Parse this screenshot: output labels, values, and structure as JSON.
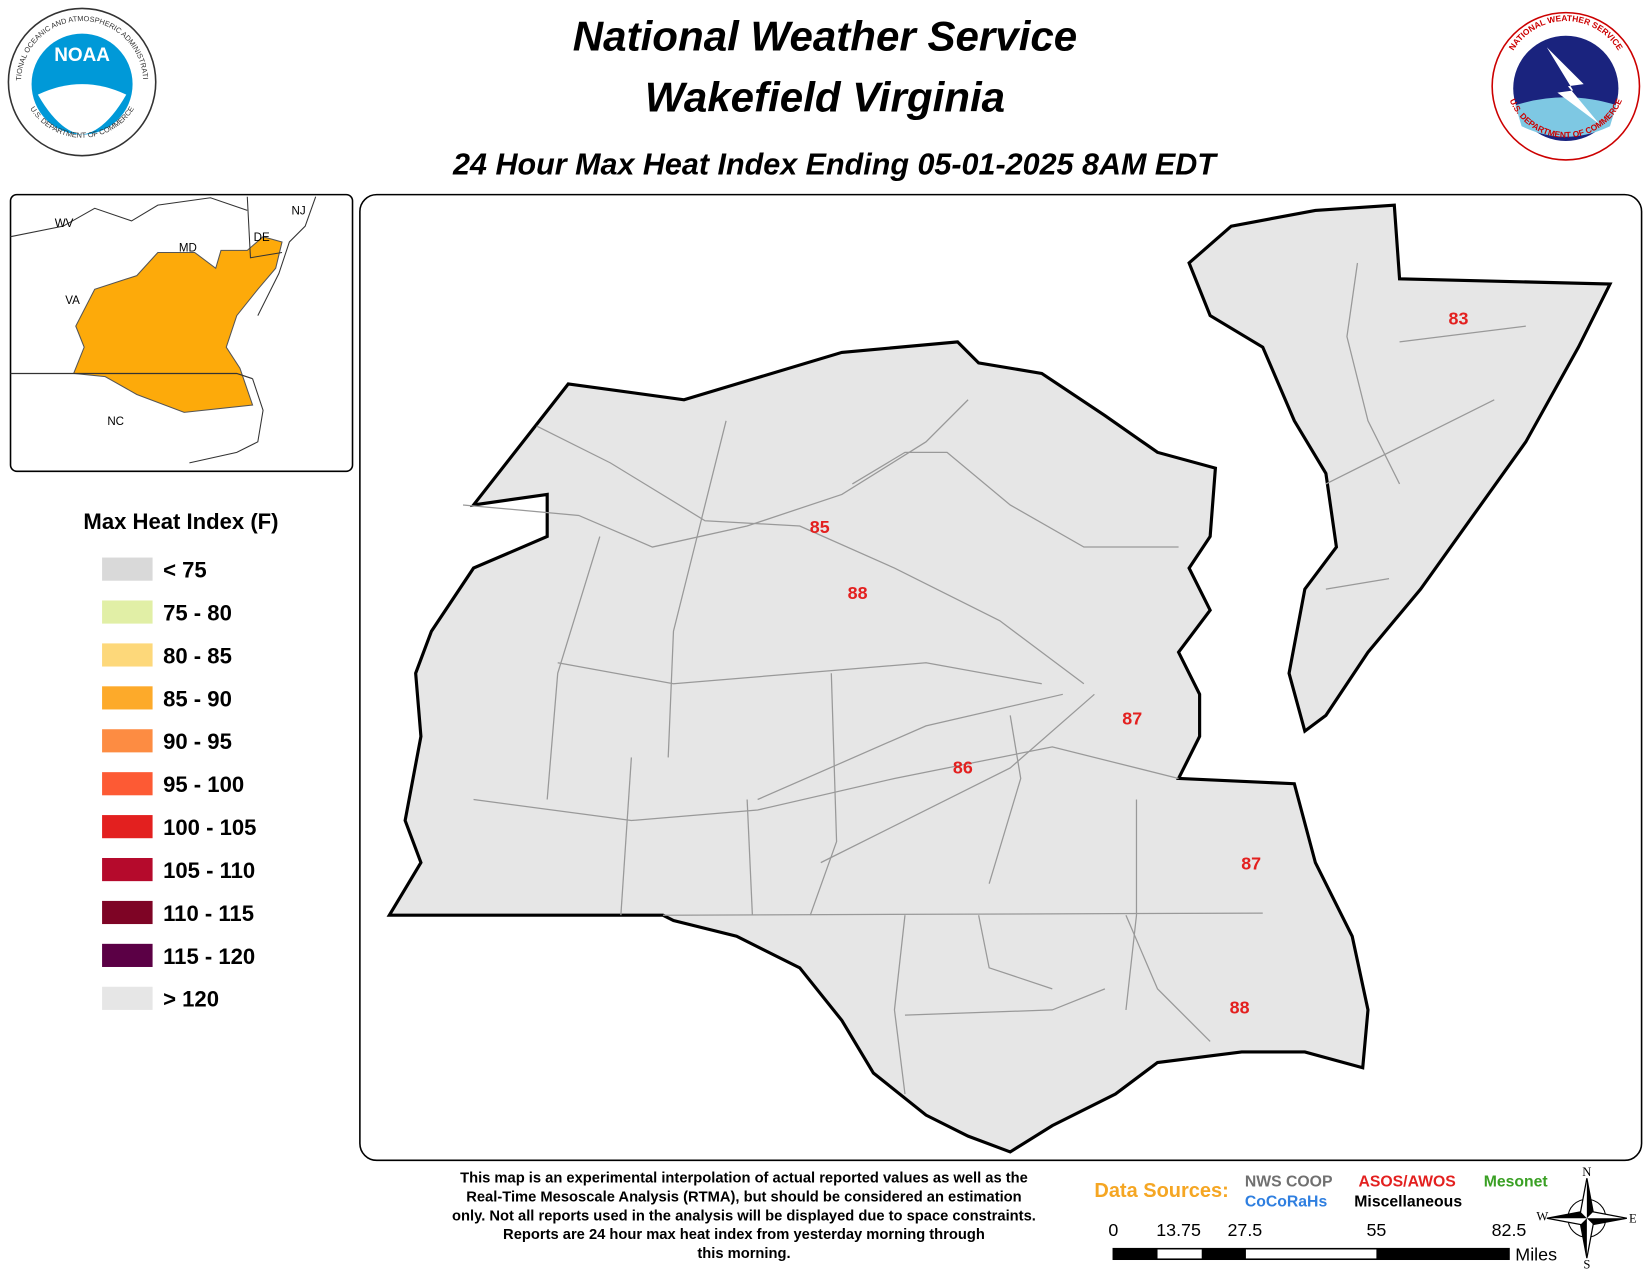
{
  "header": {
    "title_lines": [
      "National Weather Service",
      "Wakefield Virginia"
    ],
    "subtitle": "24 Hour Max Heat Index Ending 05-01-2025 8AM EDT"
  },
  "logos": {
    "left": {
      "text": "NOAA",
      "ring_top": "NATIONAL OCEANIC AND ATMOSPHERIC ADMINISTRATION",
      "ring_bottom": "U.S. DEPARTMENT OF COMMERCE"
    },
    "right": {
      "ring_top": "NATIONAL WEATHER SERVICE",
      "ring_bottom": "U.S. DEPARTMENT OF COMMERCE"
    }
  },
  "inset": {
    "labels": [
      "WV",
      "MD",
      "DE",
      "NJ",
      "VA",
      "NC"
    ],
    "highlight_color": "#fdaa0a"
  },
  "legend": {
    "title": "Max Heat Index (F)",
    "items": [
      {
        "label": "< 75",
        "color": "#d9d9d9"
      },
      {
        "label": "75 - 80",
        "color": "#e1efa6"
      },
      {
        "label": "80 - 85",
        "color": "#fdd87a"
      },
      {
        "label": "85 - 90",
        "color": "#fdaa2a"
      },
      {
        "label": "90 - 95",
        "color": "#fd8c42"
      },
      {
        "label": "95 - 100",
        "color": "#fd5a34"
      },
      {
        "label": "100 - 105",
        "color": "#e3201f"
      },
      {
        "label": "105 - 110",
        "color": "#b50a2c"
      },
      {
        "label": "110 - 115",
        "color": "#7e0425"
      },
      {
        "label": "115 - 120",
        "color": "#5b0045"
      },
      {
        "label": "> 120",
        "color": "#e6e6e6"
      }
    ]
  },
  "stations": [
    "83",
    "85",
    "88",
    "87",
    "86",
    "87",
    "88"
  ],
  "station_color": "#e3201f",
  "disclaimer": [
    "This map is an experimental interpolation of actual reported values as well as the",
    "Real-Time Mesoscale Analysis (RTMA), but should be considered an estimation",
    "only. Not all reports used in the analysis will be displayed due to space constraints.",
    "Reports are 24 hour max heat index from yesterday morning through",
    "this morning."
  ],
  "data_sources": {
    "title": {
      "label": "Data Sources:",
      "color": "#f5a623"
    },
    "items": [
      {
        "label": "NWS COOP",
        "color": "#707070"
      },
      {
        "label": "ASOS/AWOS",
        "color": "#e3201f"
      },
      {
        "label": "Mesonet",
        "color": "#3aa024"
      },
      {
        "label": "CoCoRaHs",
        "color": "#2f7fe0"
      },
      {
        "label": "Miscellaneous",
        "color": "#000000"
      }
    ]
  },
  "scale_bar": {
    "labels": [
      "0",
      "13.75",
      "27.5",
      "55",
      "82.5"
    ],
    "unit": "Miles"
  },
  "compass": [
    "N",
    "E",
    "S",
    "W"
  ]
}
